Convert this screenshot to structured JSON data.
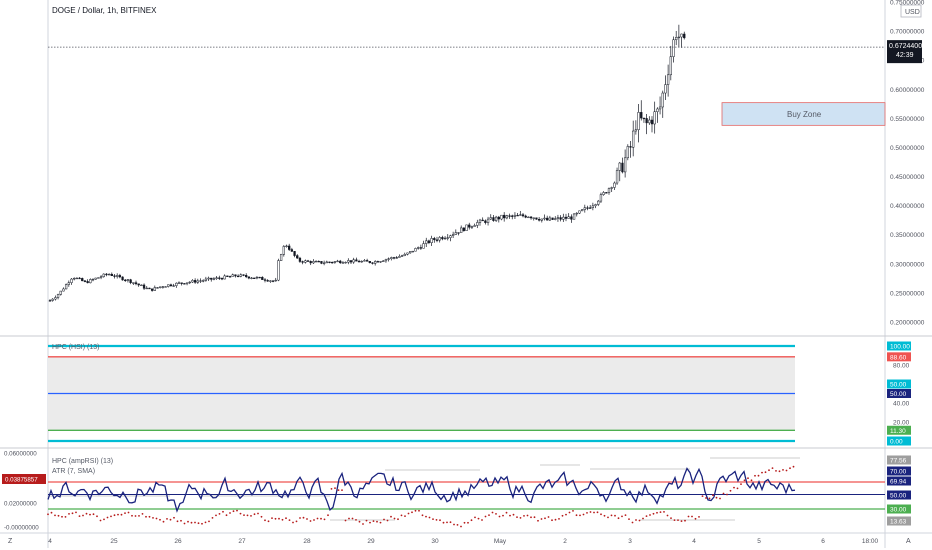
{
  "header": {
    "symbol_title": "DOGE / Dollar, 1h, BITFINEX",
    "currency": "USD"
  },
  "colors": {
    "up": "#26a69a",
    "candle": "#131722",
    "price_label_bg": "#131722",
    "buy_zone_fill": "#cfe2f3",
    "buy_zone_border": "#e06666",
    "hpc_top": "#00bcd4",
    "hpc_red": "#ef5350",
    "hpc_mid": "#2962ff",
    "hpc_green": "#4caf50",
    "amp_line": "#1a237e",
    "amp_dots": "#b71c1c",
    "atr_label_bg": "#b71c1c"
  },
  "chart_data": [
    {
      "type": "candlestick",
      "title": "DOGE / Dollar, 1h, BITFINEX",
      "y_axis_label": "USD",
      "y_ticks": [
        "0.75000000",
        "0.70000000",
        "0.65000000",
        "0.60000000",
        "0.55000000",
        "0.50000000",
        "0.45000000",
        "0.40000000",
        "0.35000000",
        "0.30000000",
        "0.25000000",
        "0.20000000"
      ],
      "ylim": [
        0.2,
        0.75
      ],
      "last_price": "0.67244000",
      "countdown": "42:39",
      "annotation": "Buy Zone",
      "buy_zone": [
        0.538,
        0.577
      ],
      "x_ticks": [
        "4",
        "25",
        "26",
        "27",
        "28",
        "29",
        "30",
        "May",
        "2",
        "3",
        "4",
        "5",
        "6",
        "18:00"
      ],
      "close_path_days": [
        [
          0,
          0.237
        ],
        [
          0.15,
          0.25
        ],
        [
          0.35,
          0.278
        ],
        [
          0.55,
          0.268
        ],
        [
          0.9,
          0.283
        ],
        [
          1.25,
          0.27
        ],
        [
          1.55,
          0.255
        ],
        [
          1.75,
          0.262
        ],
        [
          2.1,
          0.268
        ],
        [
          2.6,
          0.275
        ],
        [
          2.9,
          0.28
        ],
        [
          3.2,
          0.276
        ],
        [
          3.5,
          0.27
        ],
        [
          3.55,
          0.31
        ],
        [
          3.65,
          0.335
        ],
        [
          3.85,
          0.305
        ],
        [
          4.2,
          0.302
        ],
        [
          4.6,
          0.305
        ],
        [
          5.0,
          0.303
        ],
        [
          5.5,
          0.315
        ],
        [
          5.9,
          0.34
        ],
        [
          6.2,
          0.35
        ],
        [
          6.6,
          0.37
        ],
        [
          7.0,
          0.38
        ],
        [
          7.4,
          0.383
        ],
        [
          7.7,
          0.375
        ],
        [
          8.1,
          0.38
        ],
        [
          8.45,
          0.405
        ],
        [
          8.75,
          0.44
        ],
        [
          9.0,
          0.5
        ],
        [
          9.1,
          0.55
        ],
        [
          9.25,
          0.54
        ],
        [
          9.45,
          0.565
        ],
        [
          9.6,
          0.645
        ],
        [
          9.7,
          0.7
        ],
        [
          9.85,
          0.672
        ]
      ],
      "series": [
        {
          "name": "DOGE / Dollar",
          "values": []
        }
      ]
    },
    {
      "type": "line",
      "title": "HPC (HSI) (13)",
      "ylim": [
        0,
        100
      ],
      "y_ticks": [
        "100.00",
        "88.60",
        "80.00",
        "60.00",
        "50.00",
        "40.00",
        "20.00",
        "11.30",
        "0.00"
      ],
      "series": [
        {
          "name": "",
          "values": [
            100.0
          ]
        },
        {
          "name": "",
          "values": [
            88.6
          ]
        },
        {
          "name": "",
          "values": [
            50.0
          ]
        },
        {
          "name": "",
          "values": [
            11.3
          ]
        },
        {
          "name": "",
          "values": [
            0.0
          ]
        }
      ]
    },
    {
      "type": "line",
      "title": "HPC (ampRSI) (13)",
      "subtitle": "ATR (7, SMA)",
      "left_ticks": [
        "0.06000000",
        "0.02000000",
        "-0.00000000"
      ],
      "atr_value": "0.03875857",
      "right_labels": [
        "77.56",
        "70.00",
        "69.94",
        "50.00",
        "30.00",
        "13.63"
      ],
      "levels": {
        "upper": 70,
        "mid": 50,
        "lower": 30
      },
      "series": [
        {
          "name": "",
          "values": []
        },
        {
          "name": "",
          "values": []
        }
      ]
    }
  ]
}
